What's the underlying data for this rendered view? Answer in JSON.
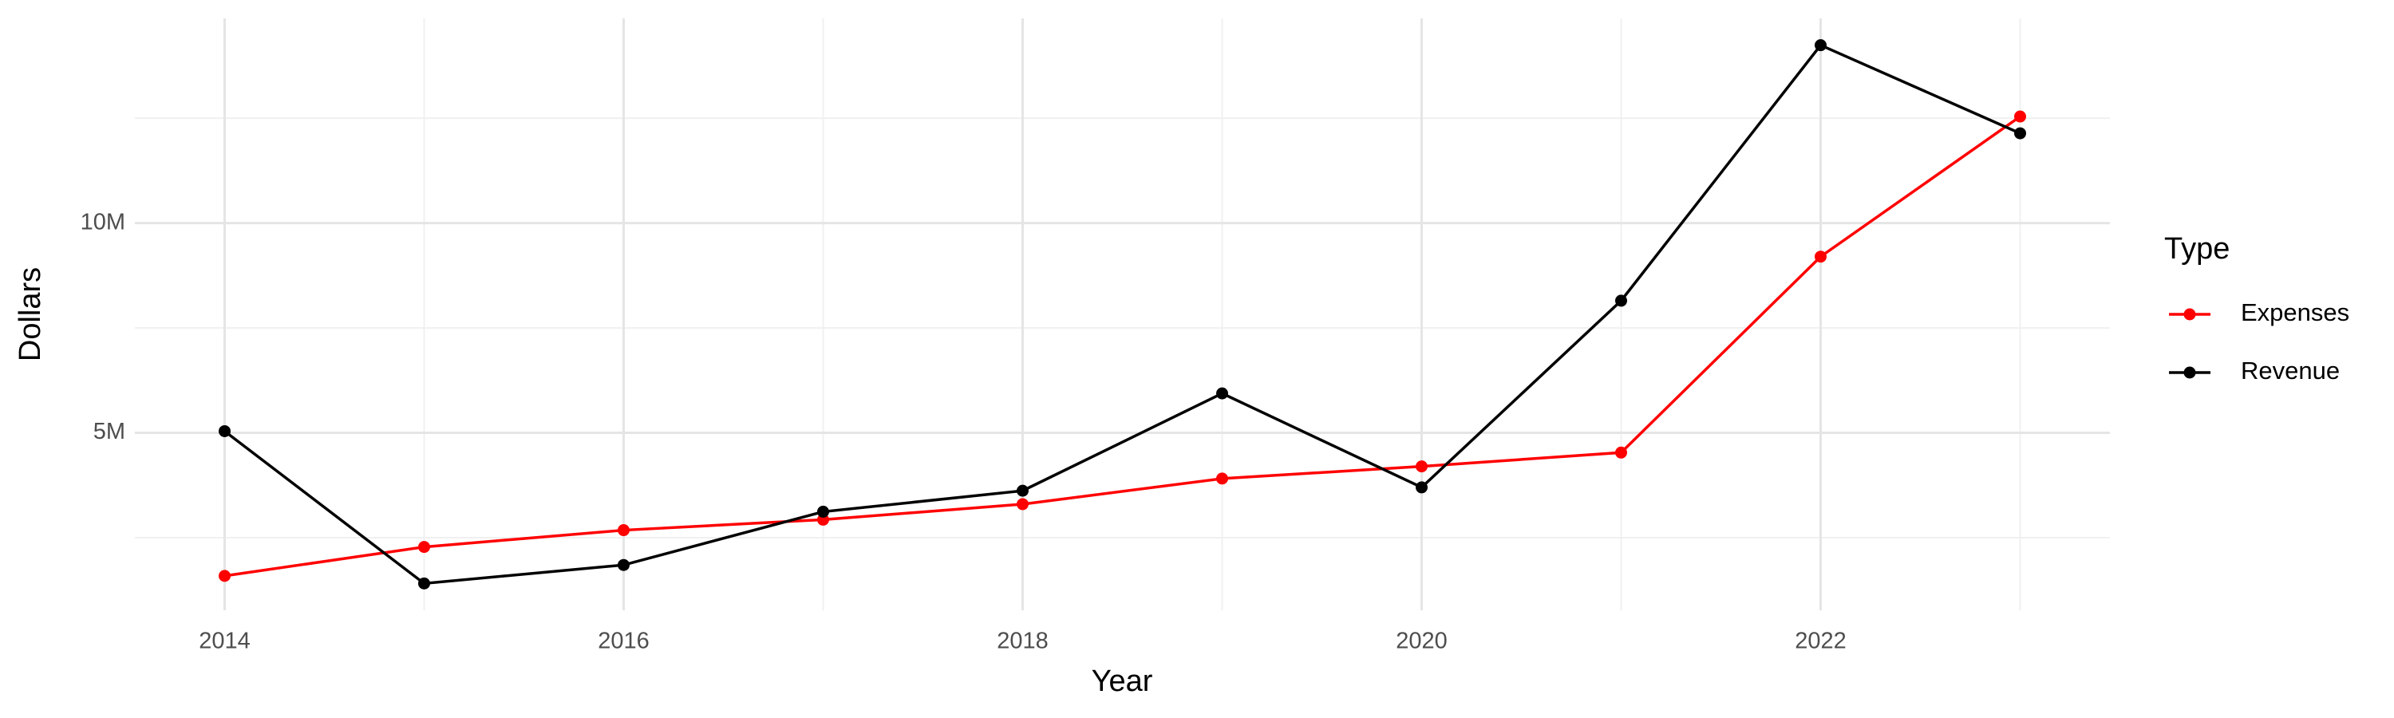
{
  "chart_data": {
    "type": "line",
    "x_label": "Year",
    "y_label": "Dollars",
    "legend_title": "Type",
    "legend_position": "right",
    "x": [
      2014,
      2015,
      2016,
      2017,
      2018,
      2019,
      2020,
      2021,
      2022,
      2023
    ],
    "series": [
      {
        "name": "Expenses",
        "color": "#ff0000",
        "values": [
          1590000,
          2280000,
          2680000,
          2930000,
          3300000,
          3910000,
          4200000,
          4530000,
          9200000,
          12540000
        ]
      },
      {
        "name": "Revenue",
        "color": "#000000",
        "values": [
          5040000,
          1410000,
          1850000,
          3120000,
          3620000,
          5940000,
          3700000,
          8150000,
          14240000,
          12140000
        ]
      }
    ],
    "xlim": [
      2013.55,
      2023.45
    ],
    "xticks": [
      2014,
      2016,
      2018,
      2020,
      2022
    ],
    "x_minor_ticks": [
      2015,
      2017,
      2019,
      2021,
      2023
    ],
    "ylim": [
      770000,
      14880000
    ],
    "yticks": [
      {
        "value": 5000000,
        "label": "5M"
      },
      {
        "value": 10000000,
        "label": "10M"
      }
    ],
    "y_minor_ticks": [
      2500000,
      7500000,
      12500000
    ],
    "grid": true
  }
}
